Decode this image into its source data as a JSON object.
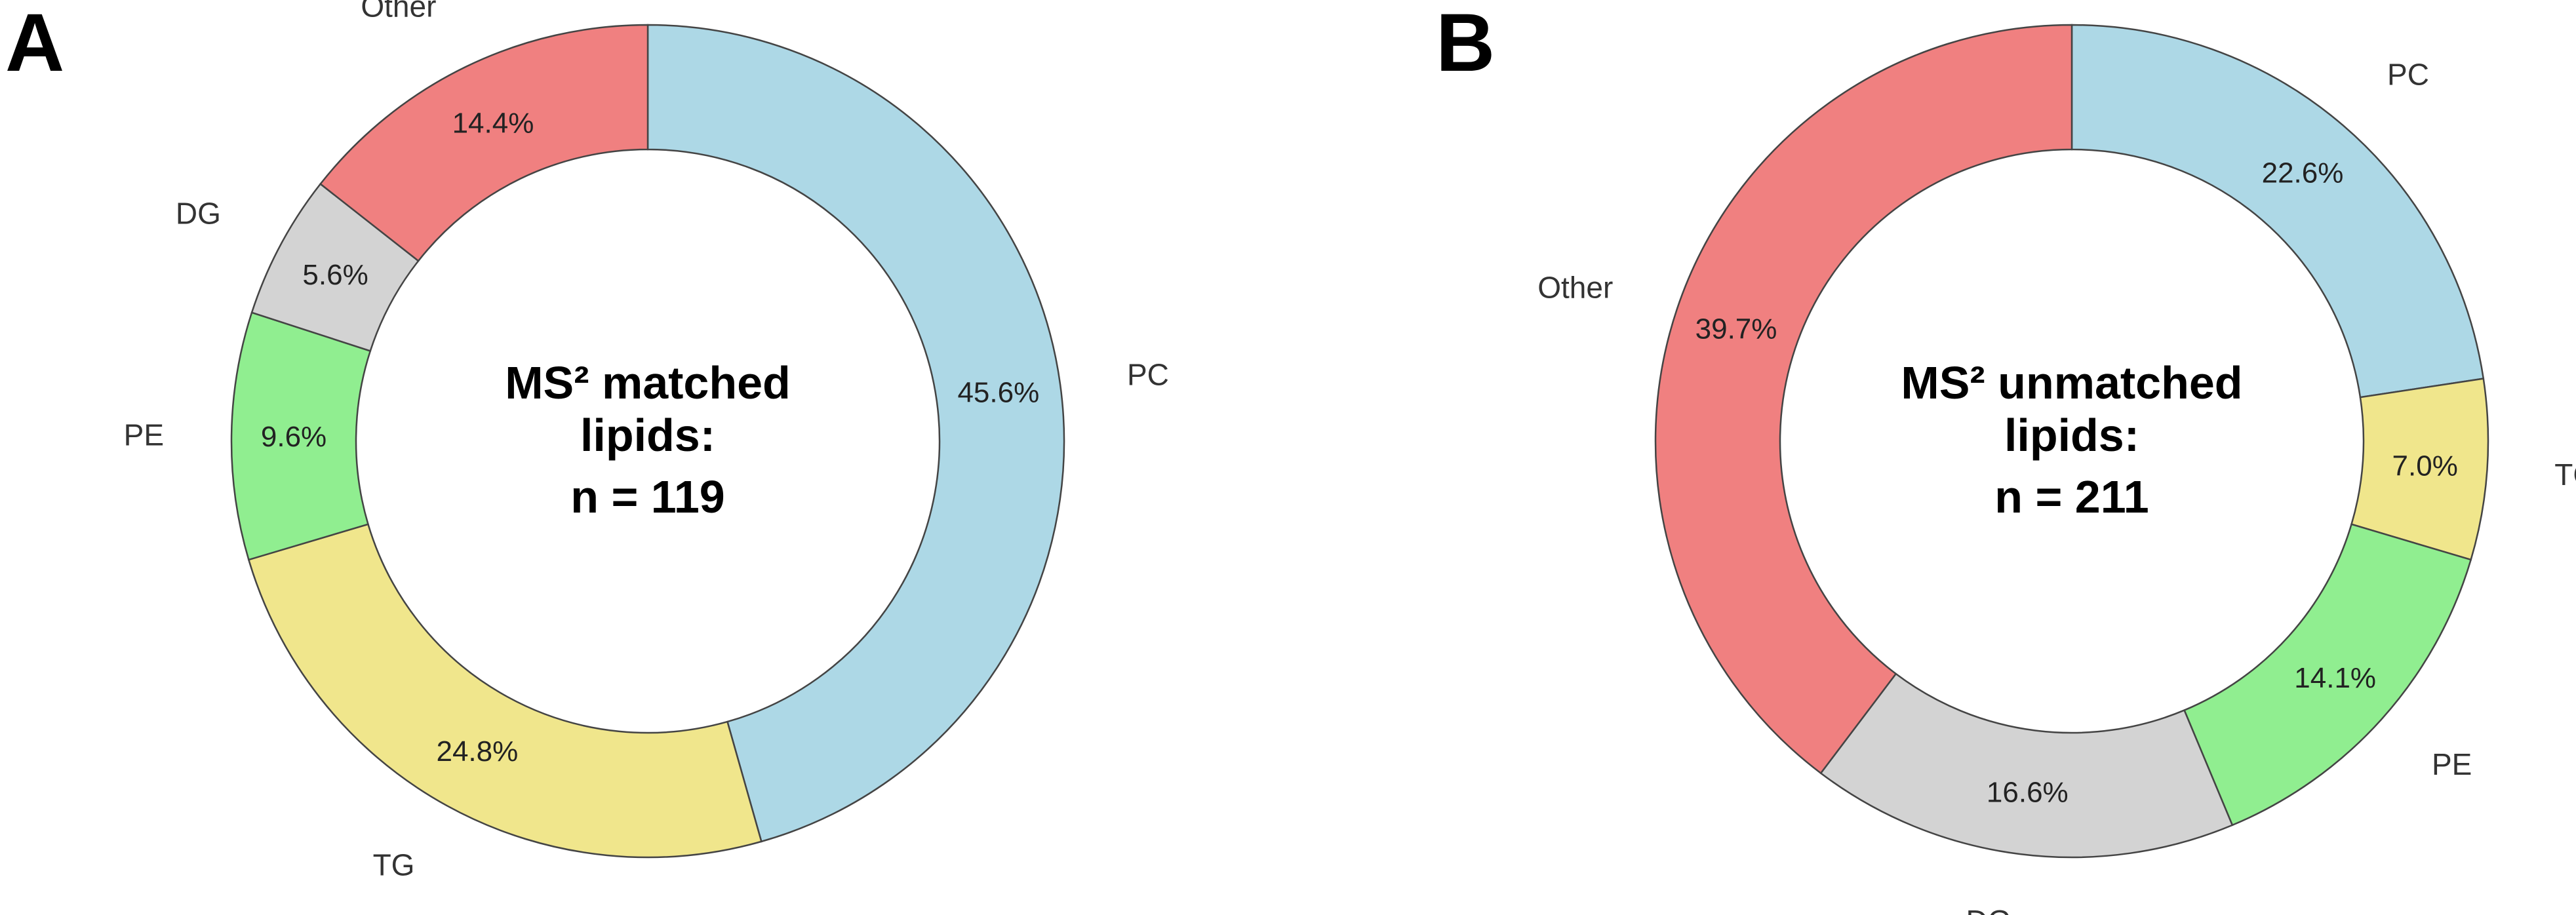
{
  "chart_data": [
    {
      "type": "pie",
      "panel": "A",
      "categories": [
        "PC",
        "TG",
        "PE",
        "DG",
        "Other"
      ],
      "values": [
        45.6,
        24.8,
        9.6,
        5.6,
        14.4
      ],
      "value_labels": [
        "45.6%",
        "24.8%",
        "9.6%",
        "5.6%",
        "14.4%"
      ],
      "colors": [
        "#add8e6",
        "#f0e68c",
        "#90ee90",
        "#d3d3d3",
        "#f08080"
      ],
      "center_title_lines": [
        "MS² matched",
        "lipids:"
      ],
      "center_count": "n = 119",
      "title": "",
      "legend": "none"
    },
    {
      "type": "pie",
      "panel": "B",
      "categories": [
        "PC",
        "TG",
        "PE",
        "DG",
        "Other"
      ],
      "values": [
        22.6,
        7.0,
        14.1,
        16.6,
        39.7
      ],
      "value_labels": [
        "22.6%",
        "7.0%",
        "14.1%",
        "16.6%",
        "39.7%"
      ],
      "colors": [
        "#add8e6",
        "#f0e68c",
        "#90ee90",
        "#d3d3d3",
        "#f08080"
      ],
      "center_title_lines": [
        "MS² unmatched",
        "lipids:"
      ],
      "center_count": "n = 211",
      "title": "",
      "legend": "none"
    }
  ]
}
